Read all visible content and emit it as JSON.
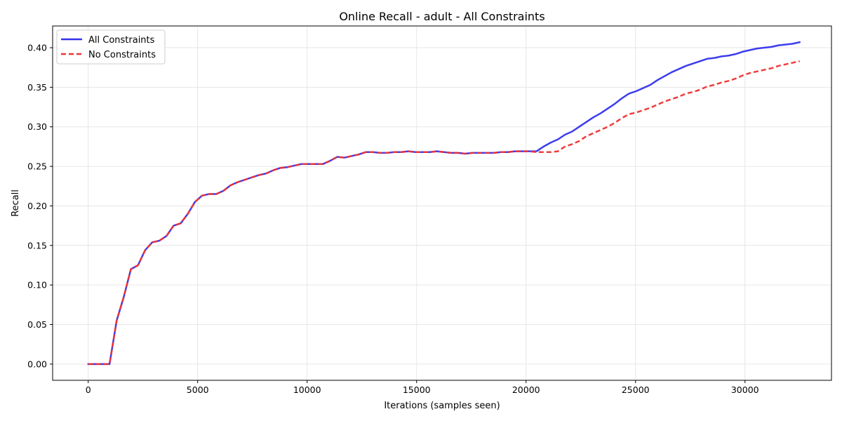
{
  "chart_data": {
    "type": "line",
    "title": "Online Recall - adult - All Constraints",
    "xlabel": "Iterations (samples seen)",
    "ylabel": "Recall",
    "xlim": [
      -1625,
      33950
    ],
    "ylim": [
      -0.0205,
      0.4275
    ],
    "xticks": [
      0,
      5000,
      10000,
      15000,
      20000,
      25000,
      30000
    ],
    "xtick_labels": [
      "0",
      "5000",
      "10000",
      "15000",
      "20000",
      "25000",
      "30000"
    ],
    "yticks": [
      0.0,
      0.05,
      0.1,
      0.15,
      0.2,
      0.25,
      0.3,
      0.35,
      0.4
    ],
    "ytick_labels": [
      "0.00",
      "0.05",
      "0.10",
      "0.15",
      "0.20",
      "0.25",
      "0.30",
      "0.35",
      "0.40"
    ],
    "grid": true,
    "legend_position": "upper-left",
    "series": [
      {
        "name": "All Constraints",
        "color": "#3333ee",
        "style": "solid",
        "points": [
          [
            0,
            0.0
          ],
          [
            325,
            0.0
          ],
          [
            650,
            0.0
          ],
          [
            975,
            0.0
          ],
          [
            1300,
            0.055
          ],
          [
            1625,
            0.085
          ],
          [
            1950,
            0.12
          ],
          [
            2275,
            0.125
          ],
          [
            2600,
            0.144
          ],
          [
            2925,
            0.154
          ],
          [
            3250,
            0.156
          ],
          [
            3575,
            0.162
          ],
          [
            3900,
            0.175
          ],
          [
            4225,
            0.178
          ],
          [
            4550,
            0.19
          ],
          [
            4875,
            0.205
          ],
          [
            5200,
            0.213
          ],
          [
            5525,
            0.215
          ],
          [
            5850,
            0.215
          ],
          [
            6175,
            0.219
          ],
          [
            6500,
            0.226
          ],
          [
            6825,
            0.23
          ],
          [
            7150,
            0.233
          ],
          [
            7475,
            0.236
          ],
          [
            7800,
            0.239
          ],
          [
            8125,
            0.241
          ],
          [
            8450,
            0.245
          ],
          [
            8775,
            0.248
          ],
          [
            9100,
            0.249
          ],
          [
            9425,
            0.251
          ],
          [
            9750,
            0.253
          ],
          [
            10075,
            0.253
          ],
          [
            10400,
            0.253
          ],
          [
            10725,
            0.253
          ],
          [
            11050,
            0.257
          ],
          [
            11375,
            0.262
          ],
          [
            11700,
            0.261
          ],
          [
            12025,
            0.263
          ],
          [
            12350,
            0.265
          ],
          [
            12675,
            0.268
          ],
          [
            13000,
            0.268
          ],
          [
            13325,
            0.267
          ],
          [
            13650,
            0.267
          ],
          [
            13975,
            0.268
          ],
          [
            14300,
            0.268
          ],
          [
            14625,
            0.269
          ],
          [
            14950,
            0.268
          ],
          [
            15275,
            0.268
          ],
          [
            15600,
            0.268
          ],
          [
            15925,
            0.269
          ],
          [
            16250,
            0.268
          ],
          [
            16575,
            0.267
          ],
          [
            16900,
            0.267
          ],
          [
            17225,
            0.266
          ],
          [
            17550,
            0.267
          ],
          [
            17875,
            0.267
          ],
          [
            18200,
            0.267
          ],
          [
            18525,
            0.267
          ],
          [
            18850,
            0.268
          ],
          [
            19175,
            0.268
          ],
          [
            19500,
            0.269
          ],
          [
            19825,
            0.269
          ],
          [
            20150,
            0.269
          ],
          [
            20475,
            0.269
          ],
          [
            20800,
            0.275
          ],
          [
            21125,
            0.28
          ],
          [
            21450,
            0.284
          ],
          [
            21775,
            0.29
          ],
          [
            22100,
            0.294
          ],
          [
            22425,
            0.3
          ],
          [
            22750,
            0.306
          ],
          [
            23075,
            0.312
          ],
          [
            23400,
            0.317
          ],
          [
            23725,
            0.323
          ],
          [
            24050,
            0.329
          ],
          [
            24375,
            0.336
          ],
          [
            24700,
            0.342
          ],
          [
            25025,
            0.345
          ],
          [
            25350,
            0.349
          ],
          [
            25675,
            0.353
          ],
          [
            26000,
            0.359
          ],
          [
            26325,
            0.364
          ],
          [
            26650,
            0.369
          ],
          [
            26975,
            0.373
          ],
          [
            27300,
            0.377
          ],
          [
            27625,
            0.38
          ],
          [
            27950,
            0.383
          ],
          [
            28275,
            0.386
          ],
          [
            28600,
            0.387
          ],
          [
            28925,
            0.389
          ],
          [
            29250,
            0.39
          ],
          [
            29575,
            0.392
          ],
          [
            29900,
            0.395
          ],
          [
            30225,
            0.397
          ],
          [
            30550,
            0.399
          ],
          [
            30875,
            0.4
          ],
          [
            31200,
            0.401
          ],
          [
            31525,
            0.403
          ],
          [
            31850,
            0.404
          ],
          [
            32175,
            0.405
          ],
          [
            32500,
            0.407
          ]
        ]
      },
      {
        "name": "No Constraints",
        "color": "#ee3333",
        "style": "dashed",
        "points": [
          [
            0,
            0.0
          ],
          [
            325,
            0.0
          ],
          [
            650,
            0.0
          ],
          [
            975,
            0.0
          ],
          [
            1300,
            0.055
          ],
          [
            1625,
            0.085
          ],
          [
            1950,
            0.12
          ],
          [
            2275,
            0.125
          ],
          [
            2600,
            0.144
          ],
          [
            2925,
            0.154
          ],
          [
            3250,
            0.156
          ],
          [
            3575,
            0.162
          ],
          [
            3900,
            0.175
          ],
          [
            4225,
            0.178
          ],
          [
            4550,
            0.19
          ],
          [
            4875,
            0.205
          ],
          [
            5200,
            0.213
          ],
          [
            5525,
            0.215
          ],
          [
            5850,
            0.215
          ],
          [
            6175,
            0.219
          ],
          [
            6500,
            0.226
          ],
          [
            6825,
            0.23
          ],
          [
            7150,
            0.233
          ],
          [
            7475,
            0.236
          ],
          [
            7800,
            0.239
          ],
          [
            8125,
            0.241
          ],
          [
            8450,
            0.245
          ],
          [
            8775,
            0.248
          ],
          [
            9100,
            0.249
          ],
          [
            9425,
            0.251
          ],
          [
            9750,
            0.253
          ],
          [
            10075,
            0.253
          ],
          [
            10400,
            0.253
          ],
          [
            10725,
            0.253
          ],
          [
            11050,
            0.257
          ],
          [
            11375,
            0.262
          ],
          [
            11700,
            0.261
          ],
          [
            12025,
            0.263
          ],
          [
            12350,
            0.265
          ],
          [
            12675,
            0.268
          ],
          [
            13000,
            0.268
          ],
          [
            13325,
            0.267
          ],
          [
            13650,
            0.267
          ],
          [
            13975,
            0.268
          ],
          [
            14300,
            0.268
          ],
          [
            14625,
            0.269
          ],
          [
            14950,
            0.268
          ],
          [
            15275,
            0.268
          ],
          [
            15600,
            0.268
          ],
          [
            15925,
            0.269
          ],
          [
            16250,
            0.268
          ],
          [
            16575,
            0.267
          ],
          [
            16900,
            0.267
          ],
          [
            17225,
            0.266
          ],
          [
            17550,
            0.267
          ],
          [
            17875,
            0.267
          ],
          [
            18200,
            0.267
          ],
          [
            18525,
            0.267
          ],
          [
            18850,
            0.268
          ],
          [
            19175,
            0.268
          ],
          [
            19500,
            0.269
          ],
          [
            19825,
            0.269
          ],
          [
            20150,
            0.269
          ],
          [
            20475,
            0.268
          ],
          [
            20800,
            0.268
          ],
          [
            21125,
            0.268
          ],
          [
            21450,
            0.269
          ],
          [
            21775,
            0.275
          ],
          [
            22100,
            0.278
          ],
          [
            22425,
            0.282
          ],
          [
            22750,
            0.288
          ],
          [
            23075,
            0.292
          ],
          [
            23400,
            0.296
          ],
          [
            23725,
            0.3
          ],
          [
            24050,
            0.305
          ],
          [
            24375,
            0.311
          ],
          [
            24700,
            0.316
          ],
          [
            25025,
            0.318
          ],
          [
            25350,
            0.321
          ],
          [
            25675,
            0.324
          ],
          [
            26000,
            0.328
          ],
          [
            26325,
            0.332
          ],
          [
            26650,
            0.335
          ],
          [
            26975,
            0.338
          ],
          [
            27300,
            0.342
          ],
          [
            27625,
            0.344
          ],
          [
            27950,
            0.347
          ],
          [
            28275,
            0.351
          ],
          [
            28600,
            0.353
          ],
          [
            28925,
            0.356
          ],
          [
            29250,
            0.358
          ],
          [
            29575,
            0.361
          ],
          [
            29900,
            0.365
          ],
          [
            30225,
            0.368
          ],
          [
            30550,
            0.37
          ],
          [
            30875,
            0.372
          ],
          [
            31200,
            0.374
          ],
          [
            31525,
            0.377
          ],
          [
            31850,
            0.379
          ],
          [
            32175,
            0.381
          ],
          [
            32500,
            0.383
          ]
        ]
      }
    ]
  }
}
